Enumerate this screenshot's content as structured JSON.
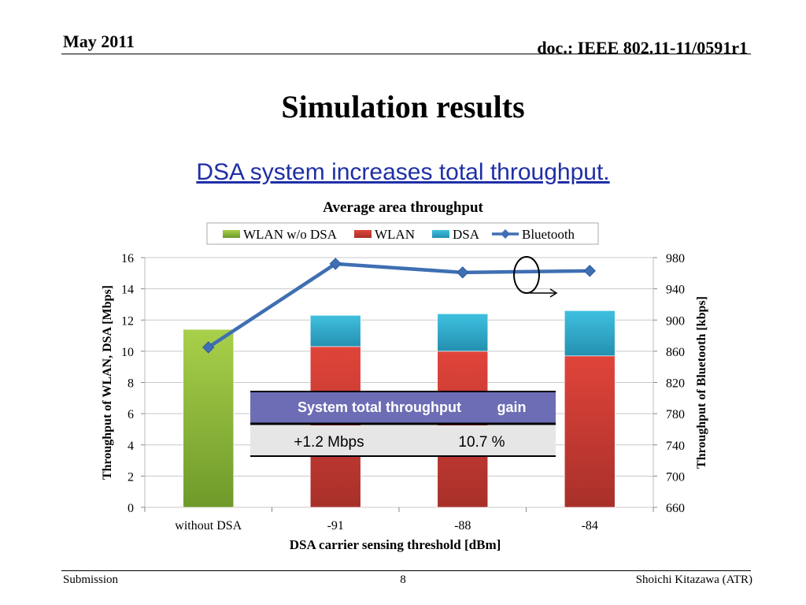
{
  "header": {
    "date": "May 2011",
    "doc": "doc.: IEEE 802.11-11/0591r1"
  },
  "slide": {
    "title": "Simulation results",
    "subtitle": "DSA system increases total throughput."
  },
  "footer": {
    "left": "Submission",
    "page": "8",
    "right": "Shoichi Kitazawa (ATR)"
  },
  "chart_data": {
    "type": "bar",
    "title": "Average area throughput",
    "xlabel": "DSA carrier sensing threshold [dBm]",
    "ylabel": "Throughput of WLAN, DSA [Mbps]",
    "y2label": "Throughput of Bluetooth [kbps]",
    "categories": [
      "without DSA",
      "-91",
      "-88",
      "-84"
    ],
    "ylim": [
      0,
      16
    ],
    "y2lim": [
      660,
      980
    ],
    "yticks": [
      0,
      2,
      4,
      6,
      8,
      10,
      12,
      14,
      16
    ],
    "y2ticks": [
      660,
      700,
      740,
      780,
      820,
      860,
      900,
      940,
      980
    ],
    "grid": true,
    "legend_position": "top",
    "series": [
      {
        "name": "WLAN w/o DSA",
        "kind": "bar",
        "stack": "a",
        "axis": "left",
        "color": "#8db63c",
        "values": [
          11.4,
          0,
          0,
          0
        ]
      },
      {
        "name": "WLAN",
        "kind": "bar",
        "stack": "a",
        "axis": "left",
        "color": "#c0392b",
        "values": [
          0,
          10.3,
          10.0,
          9.7
        ]
      },
      {
        "name": "DSA",
        "kind": "bar",
        "stack": "a",
        "axis": "left",
        "color": "#31a9cc",
        "values": [
          0,
          2.0,
          2.4,
          2.9
        ]
      },
      {
        "name": "Bluetooth",
        "kind": "line",
        "axis": "right",
        "color": "#3f6fb3",
        "values": [
          865,
          972,
          961,
          963
        ]
      }
    ],
    "inset_table": {
      "headers": [
        "System total throughput",
        "gain"
      ],
      "row": [
        "+1.2 Mbps",
        "10.7 %"
      ]
    }
  }
}
